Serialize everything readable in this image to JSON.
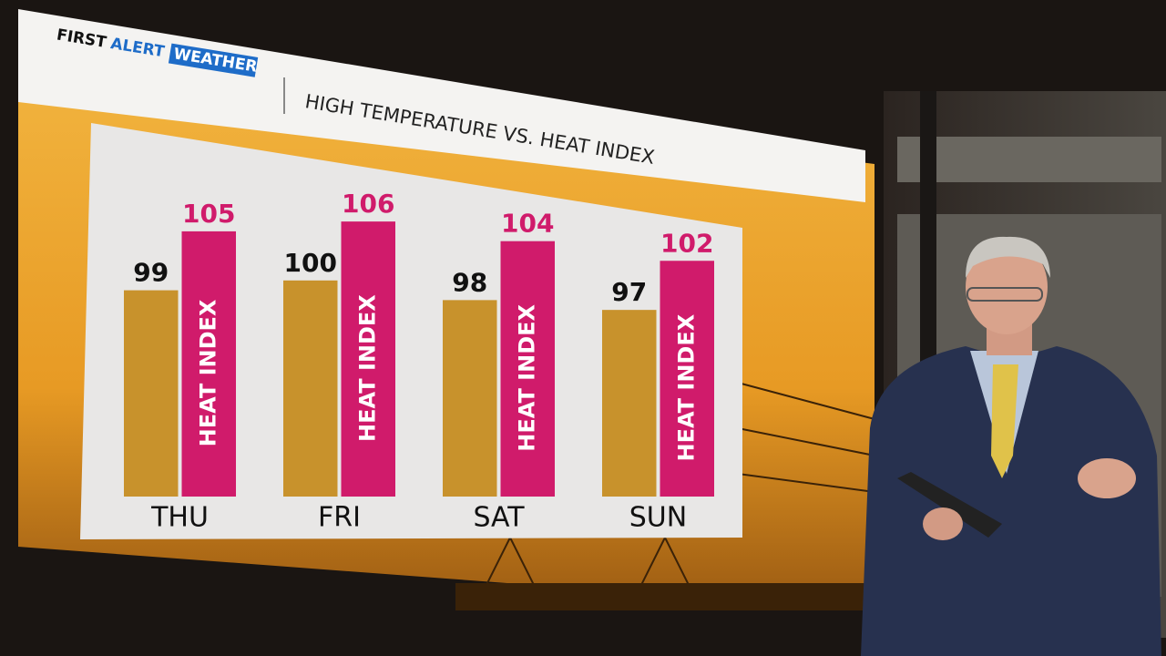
{
  "logo": {
    "first": "FIRST",
    "alert": "ALERT",
    "weather": "WEATHER"
  },
  "chart_data": {
    "type": "bar",
    "title": "HIGH TEMPERATURE VS. HEAT INDEX",
    "categories": [
      "THU",
      "FRI",
      "SAT",
      "SUN"
    ],
    "series": [
      {
        "color": "#c8922c",
        "values": [
          99,
          100,
          98,
          97
        ]
      },
      {
        "name": "HEAT INDEX",
        "color": "#d01b6b",
        "values": [
          105,
          106,
          104,
          102
        ]
      }
    ],
    "ylim": [
      78,
      110
    ]
  }
}
